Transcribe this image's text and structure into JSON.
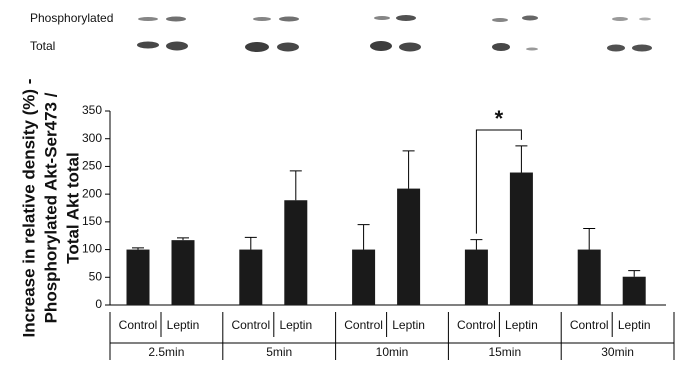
{
  "chart_data": {
    "type": "bar",
    "blot_labels": [
      "Phosphorylated",
      "Total"
    ],
    "y_label_lines": [
      "Increase in relative density (%) -",
      "Phosphorylated Akt-Ser473 /",
      "Total Akt total"
    ],
    "categories": [
      "Control",
      "Leptin",
      "Control",
      "Leptin",
      "Control",
      "Leptin",
      "Control",
      "Leptin",
      "Control",
      "Leptin"
    ],
    "groups": [
      "2.5min",
      "5min",
      "10min",
      "15min",
      "30min"
    ],
    "values": [
      100,
      117,
      100,
      189,
      100,
      210,
      100,
      239,
      100,
      51
    ],
    "errors": [
      3,
      4,
      22,
      53,
      45,
      68,
      18,
      48,
      38,
      11
    ],
    "color": "#1a1a1a",
    "ylim": [
      0,
      350
    ],
    "yticks": [
      0,
      50,
      100,
      150,
      200,
      250,
      300,
      350
    ],
    "annotation": "*"
  }
}
